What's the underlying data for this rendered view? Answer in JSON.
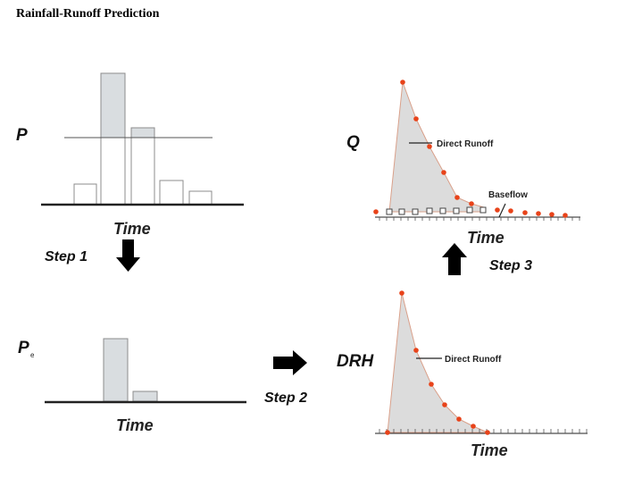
{
  "title": "Rainfall-Runoff Prediction",
  "labels": {
    "p": "P",
    "pe_main": "P",
    "pe_sub": "e",
    "q": "Q",
    "drh": "DRH",
    "time_hyetograph": "Time",
    "time_excess": "Time",
    "time_hydrograph": "Time",
    "time_drh": "Time",
    "step1": "Step 1",
    "step2": "Step 2",
    "step3": "Step 3",
    "direct_runoff_q": "Direct Runoff",
    "baseflow": "Baseflow",
    "direct_runoff_drh": "Direct Runoff"
  },
  "colors": {
    "bar_fill": "#d9dde0",
    "bar_stroke": "#8c8c8c",
    "curve_fill": "#dcdcdc",
    "curve_stroke": "#d9a08a",
    "point": "#e8431a",
    "axis": "#222222",
    "arrow": "#000000"
  },
  "icons": {
    "step1_arrow": "arrow-down-icon",
    "step2_arrow": "arrow-right-icon",
    "step3_arrow": "arrow-up-icon"
  }
}
